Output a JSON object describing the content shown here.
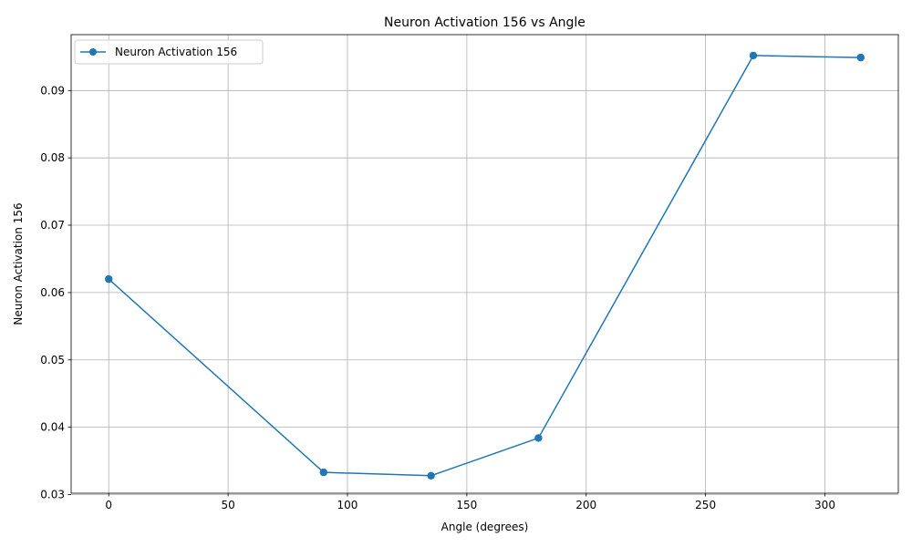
{
  "chart_data": {
    "type": "line",
    "title": "Neuron Activation 156 vs Angle",
    "xlabel": "Angle (degrees)",
    "ylabel": "Neuron Activation 156",
    "xlim": [
      -15.75,
      330.75
    ],
    "ylim": [
      0.0302,
      0.0983
    ],
    "xticks": [
      0,
      50,
      100,
      150,
      200,
      250,
      300
    ],
    "yticks": [
      0.03,
      0.04,
      0.05,
      0.06,
      0.07,
      0.08,
      0.09
    ],
    "xtick_labels": [
      "0",
      "50",
      "100",
      "150",
      "200",
      "250",
      "300"
    ],
    "ytick_labels": [
      "0.03",
      "0.04",
      "0.05",
      "0.06",
      "0.07",
      "0.08",
      "0.09"
    ],
    "grid": true,
    "legend_position": "upper-left",
    "series": [
      {
        "name": "Neuron Activation 156",
        "color": "#1f77b4",
        "marker": "circle",
        "x": [
          0,
          90,
          135,
          180,
          270,
          315
        ],
        "y": [
          0.062,
          0.0333,
          0.0328,
          0.0384,
          0.0952,
          0.0949
        ]
      }
    ]
  }
}
